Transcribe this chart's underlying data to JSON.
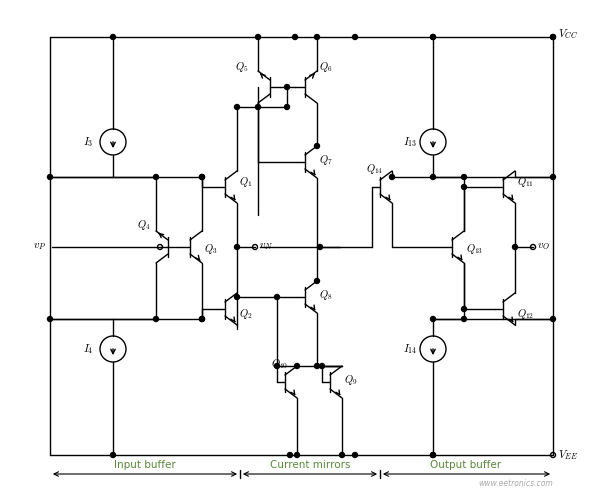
{
  "fig_width": 6.0,
  "fig_height": 4.92,
  "dpi": 100,
  "bg_color": "#ffffff",
  "line_color": "#000000",
  "label_color_green": "#5a8a3a",
  "watermark": "www.eetronics.com",
  "sections": [
    "Input buffer",
    "Current mirrors",
    "Output buffer"
  ],
  "vcc_label": "V_{CC}",
  "vee_label": "V_{EE}",
  "node_vP": "v_P",
  "node_vN": "v_N",
  "node_vO": "v_O"
}
